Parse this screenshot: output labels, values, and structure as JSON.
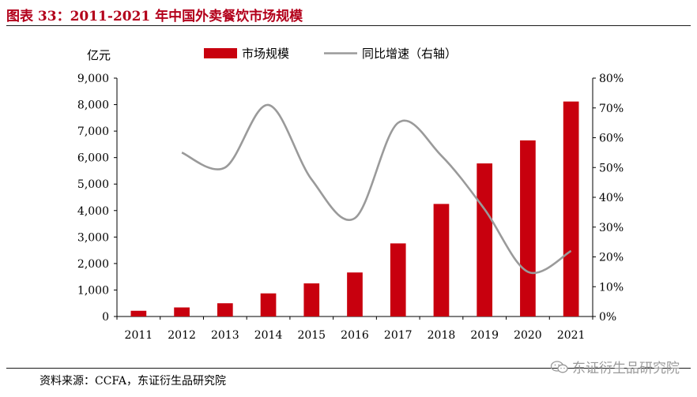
{
  "title": "图表 33：2011-2021 年中国外卖餐饮市场规模",
  "source": "资料来源：CCFA，东证衍生品研究院",
  "watermark": "东证衍生品研究院",
  "watermark_icon": "wechat-icon",
  "colors": {
    "bar": "#c8000e",
    "line": "#9a9a9a",
    "title": "#b3001b"
  },
  "chart_data": {
    "type": "bar",
    "left_unit": "亿元",
    "categories": [
      "2011",
      "2012",
      "2013",
      "2014",
      "2015",
      "2016",
      "2017",
      "2018",
      "2019",
      "2020",
      "2021"
    ],
    "series": [
      {
        "name": "市场规模",
        "type": "bar",
        "axis": "left",
        "values": [
          216,
          342,
          500,
          873,
          1250,
          1662,
          2760,
          4250,
          5780,
          6650,
          8117
        ]
      },
      {
        "name": "同比增速（右轴）",
        "type": "line",
        "axis": "right",
        "values": [
          null,
          0.55,
          0.5,
          0.71,
          0.46,
          0.33,
          0.65,
          0.54,
          0.36,
          0.15,
          0.22
        ]
      }
    ],
    "left_axis": {
      "min": 0,
      "max": 9000,
      "ticks": [
        "0",
        "1,000",
        "2,000",
        "3,000",
        "4,000",
        "5,000",
        "6,000",
        "7,000",
        "8,000",
        "9,000"
      ]
    },
    "right_axis": {
      "min": 0,
      "max": 0.8,
      "ticks": [
        "0%",
        "10%",
        "20%",
        "30%",
        "40%",
        "50%",
        "60%",
        "70%",
        "80%"
      ]
    },
    "grid": false,
    "legend_position": "top"
  }
}
